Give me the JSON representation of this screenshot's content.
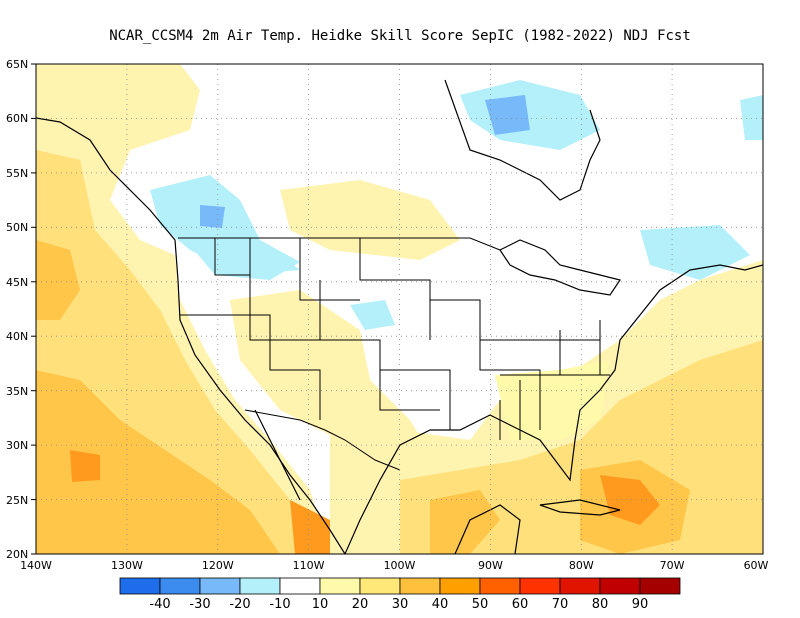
{
  "title": "NCAR_CCSM4  2m Air Temp. Heidke Skill Score SepIC (1982-2022) NDJ Fcst",
  "map": {
    "lat_labels": [
      "65N",
      "60N",
      "55N",
      "50N",
      "45N",
      "40N",
      "35N",
      "30N",
      "25N",
      "20N"
    ],
    "lon_labels": [
      "140W",
      "130W",
      "120W",
      "110W",
      "100W",
      "90W",
      "80W",
      "70W",
      "60W"
    ],
    "grid": "dotted"
  },
  "colorbar": {
    "colors": [
      "#1e6eeb",
      "#3c8cf0",
      "#78b9fa",
      "#b4f0fa",
      "#ffffff",
      "#fffaaa",
      "#ffe878",
      "#ffc03c",
      "#ffa000",
      "#ff6000",
      "#ff3200",
      "#e11400",
      "#c00000",
      "#a50000"
    ],
    "labels": [
      "-40",
      "-30",
      "-20",
      "-10",
      "10",
      "20",
      "30",
      "40",
      "50",
      "60",
      "70",
      "80",
      "90"
    ]
  },
  "palette": {
    "ocean_light": "#fff3b0",
    "ocean_mid": "#ffe07a",
    "ocean_strong": "#ffc64a",
    "hot": "#ff9a1e",
    "cool_light": "#b4f0fa",
    "cool_mid": "#78b9fa"
  }
}
